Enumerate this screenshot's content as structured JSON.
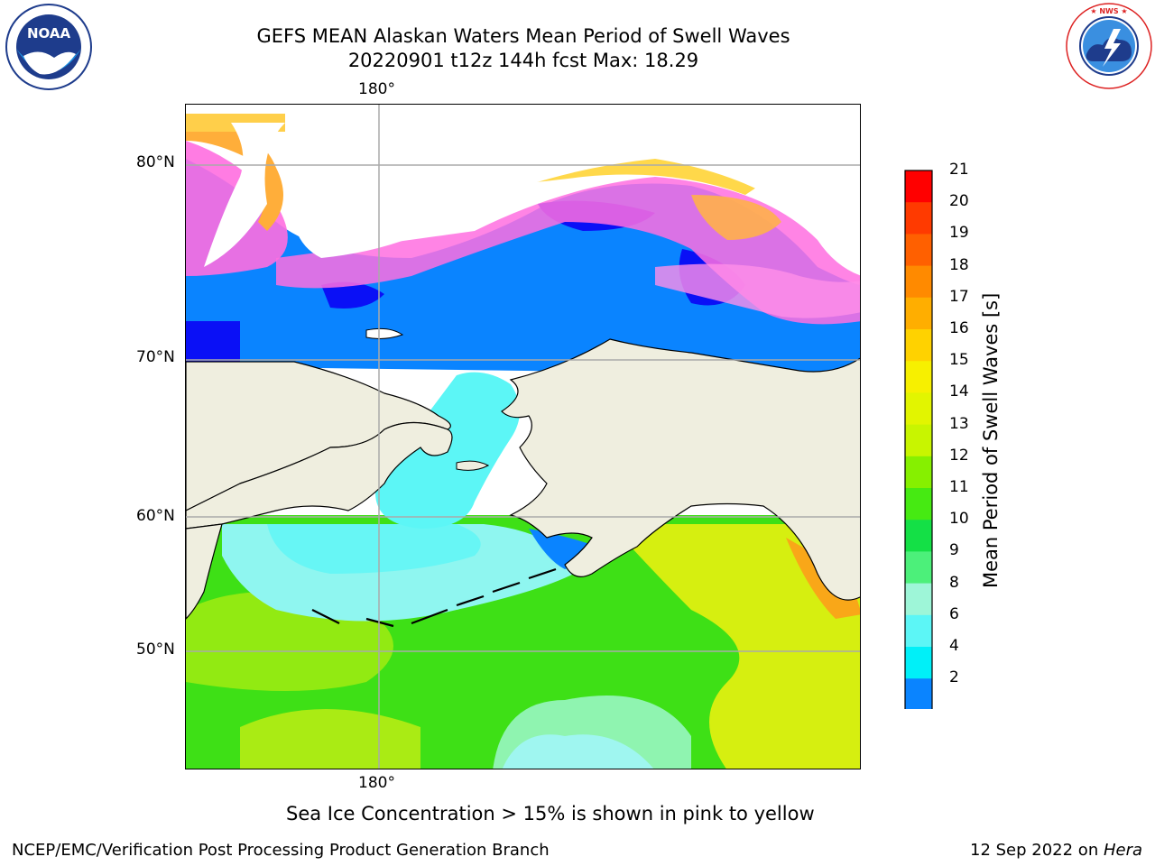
{
  "header": {
    "title_line1": "GEFS MEAN Alaskan Waters Mean Period of Swell Waves",
    "title_line2": "20220901 t12z 144h fcst   Max: 18.29"
  },
  "logos": {
    "noaa_text": "NOAA",
    "noaa_ring": "NATIONAL OCEANIC AND ATMOSPHERIC ADMINISTRATION · U.S. DEPARTMENT OF COMMERCE",
    "nws_ring": "NATIONAL WEATHER SERVICE"
  },
  "map": {
    "top_lon_label": "180°",
    "bottom_lon_label": "180°",
    "lat_labels": [
      "80°N",
      "70°N",
      "60°N",
      "50°N"
    ],
    "colors": {
      "land": "#efeedf",
      "ocean_green": "#38e012",
      "ocean_yellow": "#d8ef10",
      "cyan": "#5cf6f6",
      "blue": "#0a84ff",
      "deep_blue": "#0a10f6",
      "ice_pink": "#ff6ee0",
      "ice_orange": "#ffb04a",
      "ice_yellow": "#ffd84a"
    }
  },
  "colorbar": {
    "title": "Mean Period of Swell Waves [s]",
    "levels": [
      "21",
      "20",
      "19",
      "18",
      "17",
      "16",
      "15",
      "14",
      "13",
      "12",
      "11",
      "10",
      "9",
      "8",
      "6",
      "4",
      "2"
    ],
    "colors": [
      "#ff0000",
      "#ff3a00",
      "#ff6000",
      "#ff8a00",
      "#ffae00",
      "#ffd200",
      "#f7f000",
      "#e2f500",
      "#c8f500",
      "#86f000",
      "#46ea12",
      "#14e046",
      "#4cf07a",
      "#9ef6d8",
      "#5cf6f6",
      "#00f0f8",
      "#0a84ff",
      "#0a10f6"
    ]
  },
  "caption": "Sea Ice Concentration > 15% is shown in pink to yellow",
  "footer": {
    "left": "NCEP/EMC/Verification Post Processing Product Generation Branch",
    "right_prefix": "12 Sep 2022 on ",
    "right_host": "Hera"
  }
}
